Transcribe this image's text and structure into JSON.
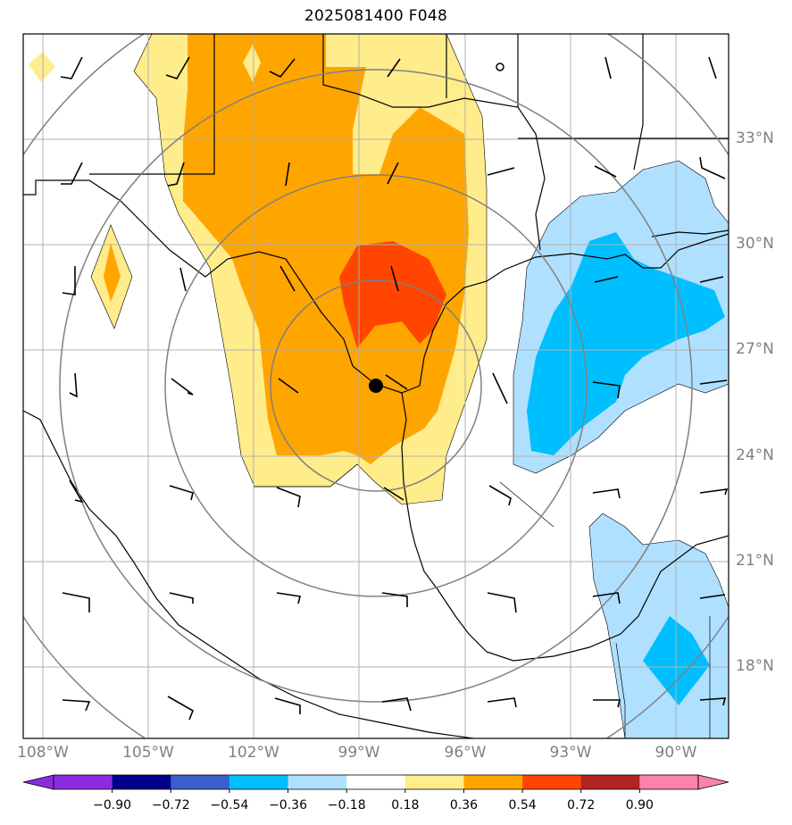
{
  "title": "2025081400 F048",
  "lat_labels": [
    "33°N",
    "30°N",
    "27°N",
    "24°N",
    "21°N",
    "18°N"
  ],
  "lon_labels": [
    "108°W",
    "105°W",
    "102°W",
    "99°W",
    "96°W",
    "93°W",
    "90°W"
  ],
  "colorbar": {
    "ticks": [
      "−0.90",
      "−0.72",
      "−0.54",
      "−0.36",
      "−0.18",
      "0.18",
      "0.36",
      "0.54",
      "0.72",
      "0.90"
    ],
    "colors": [
      "#8a2be2",
      "#00008b",
      "#3a5fcd",
      "#00bfff",
      "#b0e0ff",
      "#ffffff",
      "#ffec8b",
      "#ffa500",
      "#ff4500",
      "#b22222",
      "#ff82ab",
      "#ff82ab"
    ]
  },
  "colors": {
    "light_yellow": "#ffec8b",
    "orange": "#ffa500",
    "red_orange": "#ff4500",
    "light_blue": "#b0e0ff",
    "deep_sky_blue": "#00bfff",
    "grid": "#b0b0b0",
    "range_rings": "#808080"
  },
  "storm_center": {
    "lon": "98.6°W",
    "lat": "25.9°N"
  }
}
